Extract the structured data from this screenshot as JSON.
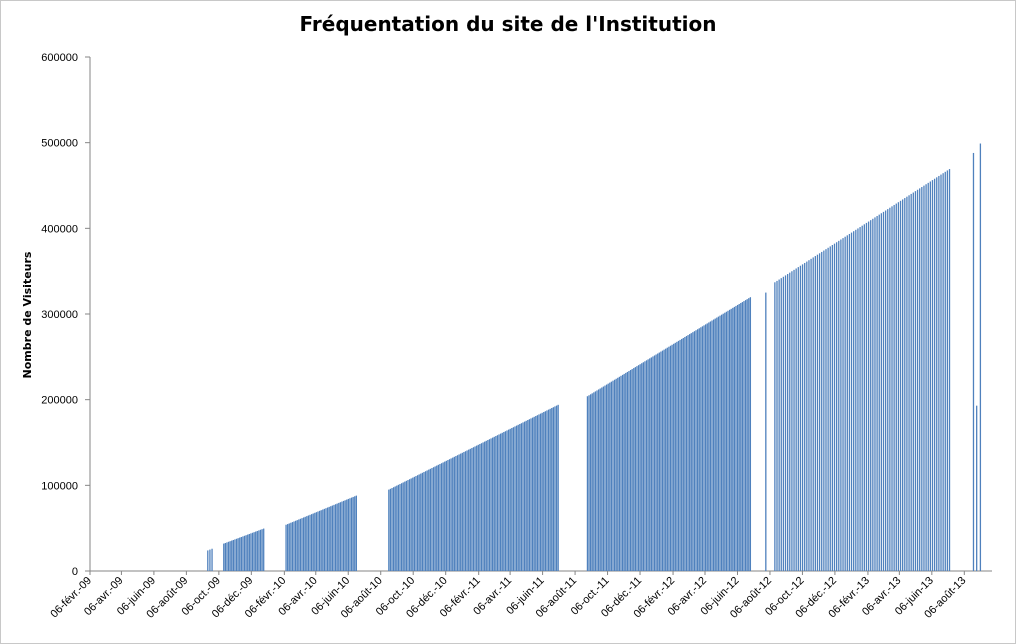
{
  "chart_data": {
    "type": "bar",
    "title": "Fréquentation du site de l'Institution",
    "ylabel": "Nombre de Visiteurs",
    "xlabel": "",
    "ylim": [
      0,
      600000
    ],
    "yticks": [
      "0",
      "100000",
      "200000",
      "300000",
      "400000",
      "500000",
      "600000"
    ],
    "grid": false,
    "legend": "none",
    "bar_color": "#4F81BD",
    "x_start": "2009-02-06",
    "x_end": "2013-09-27",
    "xtick_labels": [
      "06-févr.-09",
      "06-avr.-09",
      "06-juin-09",
      "06-août-09",
      "06-oct.-09",
      "06-déc.-09",
      "06-févr.-10",
      "06-avr.-10",
      "06-juin-10",
      "06-août-10",
      "06-oct.-10",
      "06-déc.-10",
      "06-févr.-11",
      "06-avr.-11",
      "06-juin-11",
      "06-août-11",
      "06-oct.-11",
      "06-déc.-11",
      "06-févr.-12",
      "06-avr.-12",
      "06-juin-12",
      "06-août-12",
      "06-oct.-12",
      "06-déc.-12",
      "06-févr.-13",
      "06-avr.-13",
      "06-juin-13",
      "06-août-13"
    ],
    "xtick_dates": [
      "2009-02-06",
      "2009-04-06",
      "2009-06-06",
      "2009-08-06",
      "2009-10-06",
      "2009-12-06",
      "2010-02-06",
      "2010-04-06",
      "2010-06-06",
      "2010-08-06",
      "2010-10-06",
      "2010-12-06",
      "2011-02-06",
      "2011-04-06",
      "2011-06-06",
      "2011-08-06",
      "2011-10-06",
      "2011-12-06",
      "2012-02-06",
      "2012-04-06",
      "2012-06-06",
      "2012-08-06",
      "2012-10-06",
      "2012-12-06",
      "2013-02-06",
      "2013-04-06",
      "2013-06-06",
      "2013-08-06"
    ],
    "segments": [
      {
        "start": "2009-09-14",
        "end": "2009-09-22",
        "from": 24000,
        "to": 26000,
        "step_days": 4
      },
      {
        "start": "2009-10-14",
        "end": "2009-12-30",
        "from": 32000,
        "to": 50000,
        "step_days": 3
      },
      {
        "start": "2010-02-08",
        "end": "2010-06-20",
        "from": 54000,
        "to": 88000,
        "step_days": 3
      },
      {
        "start": "2010-08-20",
        "end": "2011-07-04",
        "from": 95000,
        "to": 194000,
        "step_days": 3
      },
      {
        "start": "2011-08-28",
        "end": "2012-06-30",
        "from": 204000,
        "to": 320000,
        "step_days": 3
      },
      {
        "start": "2012-07-28",
        "end": "2012-07-30",
        "from": 325000,
        "to": 325000,
        "step_days": 3
      },
      {
        "start": "2012-08-14",
        "end": "2013-07-10",
        "from": 337000,
        "to": 470000,
        "step_days": 4
      }
    ],
    "points": [
      {
        "x": "2013-08-22",
        "y": 488000
      },
      {
        "x": "2013-08-28",
        "y": 193000
      },
      {
        "x": "2013-09-04",
        "y": 499000
      }
    ]
  }
}
